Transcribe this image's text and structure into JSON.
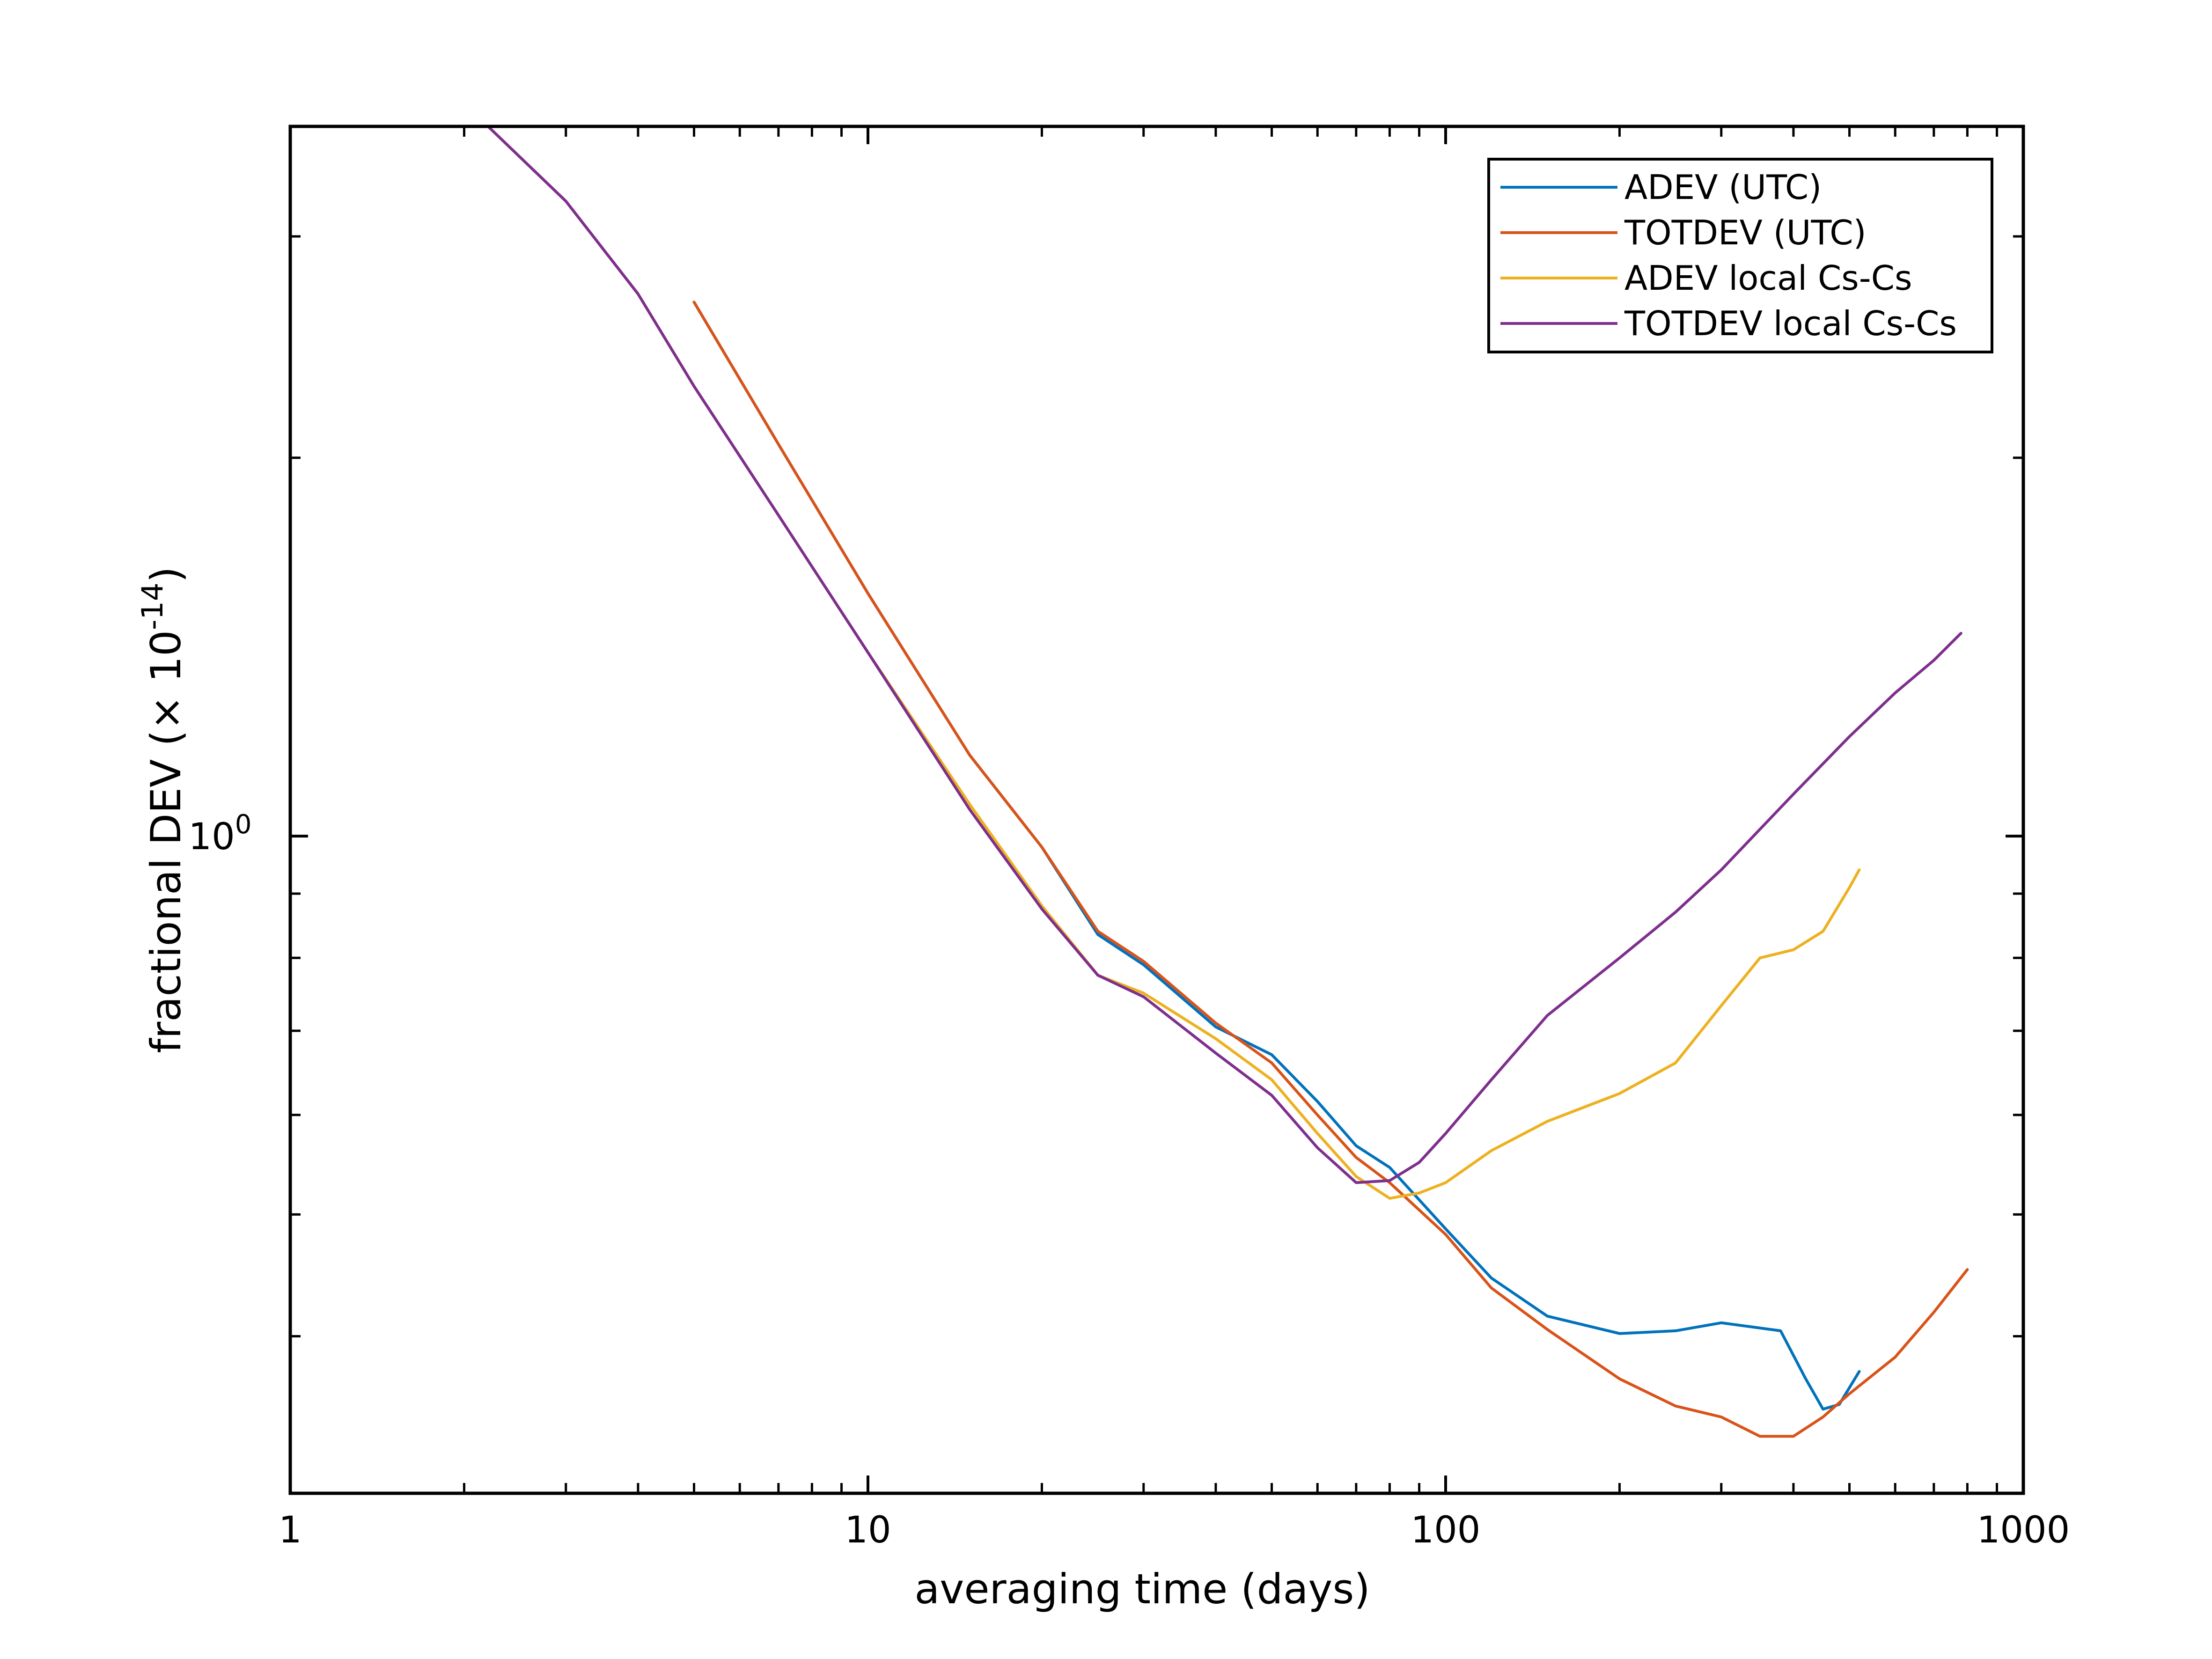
{
  "chart_data": {
    "type": "line",
    "xscale": "log",
    "yscale": "log",
    "xlim": [
      1,
      1000
    ],
    "ylim": [
      0.3,
      3.67
    ],
    "xlabel": "averaging time (days)",
    "ylabel": "fractional DEV (× 10",
    "ylabel_exp": "-14",
    "ylabel_close": ")",
    "xticks": [
      {
        "value": 1,
        "label": "1"
      },
      {
        "value": 10,
        "label": "10"
      },
      {
        "value": 100,
        "label": "100"
      },
      {
        "value": 1000,
        "label": "1000"
      }
    ],
    "yticks": [
      {
        "value": 1,
        "base": "10",
        "exp": "0"
      }
    ],
    "y_minor_ticks": [
      0.4,
      0.5,
      0.6,
      0.7,
      0.8,
      0.9,
      2,
      3
    ],
    "x_minor_ticks": [
      2,
      3,
      4,
      5,
      6,
      7,
      8,
      9,
      20,
      30,
      40,
      50,
      60,
      70,
      80,
      90,
      200,
      300,
      400,
      500,
      600,
      700,
      800,
      900
    ],
    "grid": false,
    "legend_position": "top-right",
    "series": [
      {
        "name": "ADEV (UTC)",
        "color": "#0072BD",
        "points": [
          [
            5,
            2.66
          ],
          [
            7,
            2.05
          ],
          [
            10,
            1.56
          ],
          [
            15,
            1.16
          ],
          [
            20,
            0.98
          ],
          [
            25,
            0.835
          ],
          [
            30,
            0.79
          ],
          [
            40,
            0.705
          ],
          [
            50,
            0.67
          ],
          [
            60,
            0.615
          ],
          [
            70,
            0.567
          ],
          [
            80,
            0.545
          ],
          [
            100,
            0.487
          ],
          [
            120,
            0.445
          ],
          [
            150,
            0.415
          ],
          [
            200,
            0.402
          ],
          [
            250,
            0.404
          ],
          [
            300,
            0.41
          ],
          [
            380,
            0.404
          ],
          [
            420,
            0.37
          ],
          [
            450,
            0.35
          ],
          [
            480,
            0.353
          ],
          [
            520,
            0.375
          ]
        ]
      },
      {
        "name": "TOTDEV (UTC)",
        "color": "#D95319",
        "points": [
          [
            5,
            2.66
          ],
          [
            7,
            2.05
          ],
          [
            10,
            1.56
          ],
          [
            15,
            1.16
          ],
          [
            20,
            0.98
          ],
          [
            25,
            0.84
          ],
          [
            30,
            0.795
          ],
          [
            40,
            0.71
          ],
          [
            50,
            0.66
          ],
          [
            60,
            0.6
          ],
          [
            70,
            0.555
          ],
          [
            80,
            0.53
          ],
          [
            100,
            0.482
          ],
          [
            120,
            0.437
          ],
          [
            150,
            0.405
          ],
          [
            200,
            0.37
          ],
          [
            250,
            0.352
          ],
          [
            300,
            0.345
          ],
          [
            350,
            0.333
          ],
          [
            400,
            0.333
          ],
          [
            450,
            0.345
          ],
          [
            500,
            0.36
          ],
          [
            600,
            0.385
          ],
          [
            700,
            0.418
          ],
          [
            800,
            0.452
          ]
        ]
      },
      {
        "name": "ADEV local Cs-Cs",
        "color": "#EDB120",
        "points": [
          [
            2.2,
            3.67
          ],
          [
            3,
            3.2
          ],
          [
            4,
            2.7
          ],
          [
            5,
            2.28
          ],
          [
            7,
            1.8
          ],
          [
            10,
            1.4
          ],
          [
            15,
            1.06
          ],
          [
            20,
            0.88
          ],
          [
            25,
            0.775
          ],
          [
            30,
            0.75
          ],
          [
            40,
            0.69
          ],
          [
            50,
            0.64
          ],
          [
            60,
            0.58
          ],
          [
            70,
            0.536
          ],
          [
            80,
            0.515
          ],
          [
            90,
            0.52
          ],
          [
            100,
            0.53
          ],
          [
            120,
            0.562
          ],
          [
            150,
            0.593
          ],
          [
            200,
            0.624
          ],
          [
            250,
            0.66
          ],
          [
            300,
            0.733
          ],
          [
            350,
            0.8
          ],
          [
            400,
            0.812
          ],
          [
            450,
            0.84
          ],
          [
            500,
            0.91
          ],
          [
            520,
            0.94
          ]
        ]
      },
      {
        "name": "TOTDEV local Cs-Cs",
        "color": "#7E2F8E",
        "points": [
          [
            2.2,
            3.67
          ],
          [
            3,
            3.2
          ],
          [
            4,
            2.7
          ],
          [
            5,
            2.28
          ],
          [
            7,
            1.8
          ],
          [
            10,
            1.4
          ],
          [
            15,
            1.05
          ],
          [
            20,
            0.875
          ],
          [
            25,
            0.775
          ],
          [
            30,
            0.745
          ],
          [
            40,
            0.672
          ],
          [
            50,
            0.622
          ],
          [
            60,
            0.565
          ],
          [
            70,
            0.53
          ],
          [
            80,
            0.532
          ],
          [
            90,
            0.55
          ],
          [
            100,
            0.58
          ],
          [
            120,
            0.64
          ],
          [
            150,
            0.72
          ],
          [
            200,
            0.8
          ],
          [
            250,
            0.87
          ],
          [
            300,
            0.94
          ],
          [
            400,
            1.08
          ],
          [
            500,
            1.2
          ],
          [
            600,
            1.3
          ],
          [
            700,
            1.38
          ],
          [
            780,
            1.45
          ]
        ]
      }
    ]
  }
}
